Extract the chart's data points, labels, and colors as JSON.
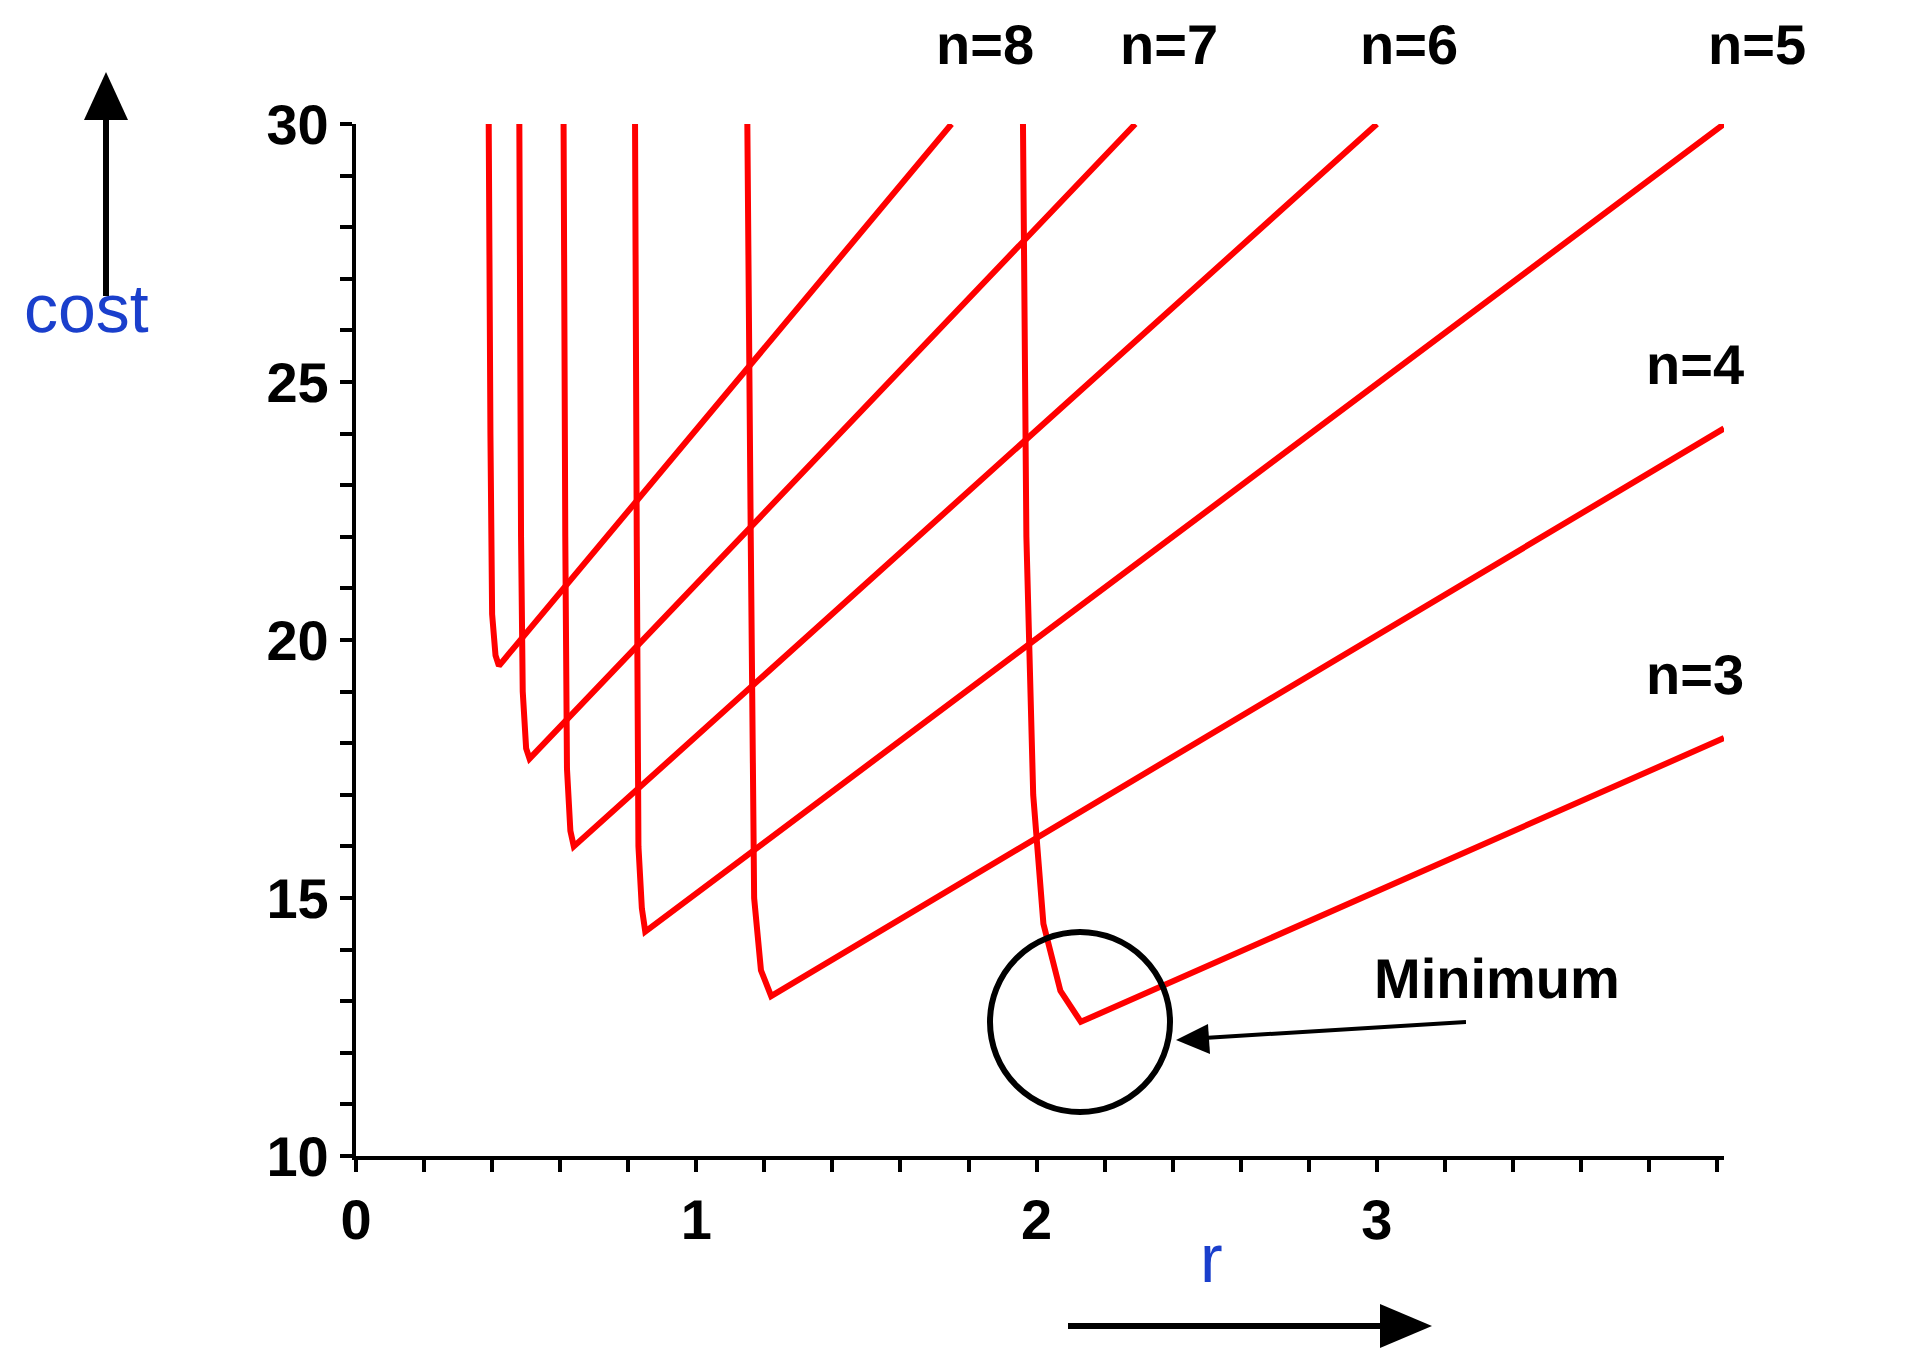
{
  "chart_data": {
    "type": "line",
    "xlabel": "r",
    "ylabel": "cost",
    "xlim": [
      0,
      4.02
    ],
    "ylim": [
      10,
      30
    ],
    "xticks": [
      0,
      {
        "value": 0.2,
        "label": null
      },
      {
        "value": 0.4,
        "label": null
      },
      {
        "value": 0.6,
        "label": null
      },
      {
        "value": 0.8,
        "label": null
      },
      1,
      {
        "value": 1.2,
        "label": null
      },
      {
        "value": 1.4,
        "label": null
      },
      {
        "value": 1.6,
        "label": null
      },
      {
        "value": 1.8,
        "label": null
      },
      2,
      {
        "value": 2.2,
        "label": null
      },
      {
        "value": 2.4,
        "label": null
      },
      {
        "value": 2.6,
        "label": null
      },
      {
        "value": 2.8,
        "label": null
      },
      3,
      {
        "value": 3.2,
        "label": null
      },
      {
        "value": 3.4,
        "label": null
      },
      {
        "value": 3.6,
        "label": null
      },
      {
        "value": 3.8,
        "label": null
      },
      {
        "value": 4,
        "label": null
      }
    ],
    "yticks": [
      10,
      {
        "value": 11,
        "label": null
      },
      {
        "value": 12,
        "label": null
      },
      {
        "value": 13,
        "label": null
      },
      {
        "value": 14,
        "label": null
      },
      15,
      {
        "value": 16,
        "label": null
      },
      {
        "value": 17,
        "label": null
      },
      {
        "value": 18,
        "label": null
      },
      {
        "value": 19,
        "label": null
      },
      20,
      {
        "value": 21,
        "label": null
      },
      {
        "value": 22,
        "label": null
      },
      {
        "value": 23,
        "label": null
      },
      {
        "value": 24,
        "label": null
      },
      25,
      {
        "value": 26,
        "label": null
      },
      {
        "value": 27,
        "label": null
      },
      {
        "value": 28,
        "label": null
      },
      {
        "value": 29,
        "label": null
      },
      30
    ],
    "grid": false,
    "legend": false,
    "marker": "none",
    "line_style": "solid",
    "series": [
      {
        "name": "n=8",
        "color": "#ff0000",
        "x": [
          0.39,
          0.395,
          0.4,
          0.41,
          0.42,
          1.75
        ],
        "values": [
          30,
          24,
          20.5,
          19.7,
          19.5,
          30
        ]
      },
      {
        "name": "n=7",
        "color": "#ff0000",
        "x": [
          0.48,
          0.485,
          0.49,
          0.5,
          0.51,
          2.29
        ],
        "values": [
          30,
          22,
          19,
          17.9,
          17.7,
          30
        ]
      },
      {
        "name": "n=6",
        "color": "#ff0000",
        "x": [
          0.61,
          0.615,
          0.62,
          0.63,
          0.64,
          3.0
        ],
        "values": [
          30,
          22,
          17.5,
          16.3,
          16,
          30
        ]
      },
      {
        "name": "n=5",
        "color": "#ff0000",
        "x": [
          0.82,
          0.825,
          0.83,
          0.84,
          0.85,
          4.02
        ],
        "values": [
          30,
          22,
          16,
          14.8,
          14.35,
          30
        ]
      },
      {
        "name": "n=4",
        "color": "#ff0000",
        "x": [
          1.15,
          1.16,
          1.17,
          1.19,
          1.22,
          4.02
        ],
        "values": [
          30,
          22,
          15,
          13.6,
          13.1,
          24.1
        ]
      },
      {
        "name": "n=3",
        "color": "#ff0000",
        "x": [
          1.96,
          1.97,
          1.99,
          2.02,
          2.07,
          2.13,
          4.02
        ],
        "values": [
          30,
          22,
          17,
          14.5,
          13.2,
          12.6,
          18.1
        ]
      }
    ],
    "annotations": [
      "Minimum"
    ]
  }
}
